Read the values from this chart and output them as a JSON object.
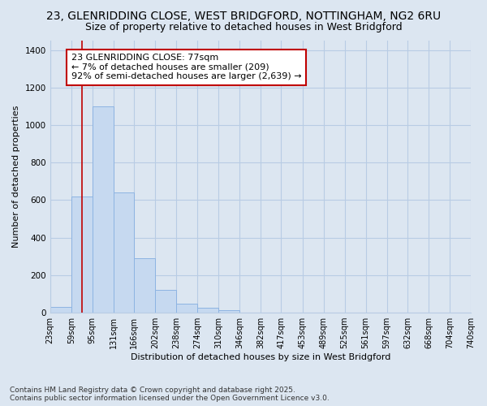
{
  "title1": "23, GLENRIDDING CLOSE, WEST BRIDGFORD, NOTTINGHAM, NG2 6RU",
  "title2": "Size of property relative to detached houses in West Bridgford",
  "xlabel": "Distribution of detached houses by size in West Bridgford",
  "ylabel": "Number of detached properties",
  "footer1": "Contains HM Land Registry data © Crown copyright and database right 2025.",
  "footer2": "Contains public sector information licensed under the Open Government Licence v3.0.",
  "bin_edges": [
    23,
    59,
    95,
    131,
    166,
    202,
    238,
    274,
    310,
    346,
    382,
    417,
    453,
    489,
    525,
    561,
    597,
    632,
    668,
    704,
    740
  ],
  "bar_heights": [
    30,
    620,
    1100,
    640,
    290,
    120,
    50,
    25,
    15,
    0,
    0,
    0,
    0,
    0,
    0,
    0,
    0,
    0,
    0,
    0
  ],
  "bar_color": "#c6d9f0",
  "bar_edge_color": "#8db4e2",
  "bg_color": "#dce6f1",
  "grid_color": "#b8cce4",
  "property_line_x": 77,
  "property_line_color": "#c00000",
  "annotation_text": "23 GLENRIDDING CLOSE: 77sqm\n← 7% of detached houses are smaller (209)\n92% of semi-detached houses are larger (2,639) →",
  "annotation_box_color": "#ffffff",
  "annotation_box_edge": "#c00000",
  "ylim": [
    0,
    1450
  ],
  "yticks": [
    0,
    200,
    400,
    600,
    800,
    1000,
    1200,
    1400
  ],
  "title_fontsize": 10,
  "subtitle_fontsize": 9,
  "annotation_fontsize": 8,
  "axis_fontsize": 8,
  "tick_fontsize": 7,
  "footer_fontsize": 6.5
}
